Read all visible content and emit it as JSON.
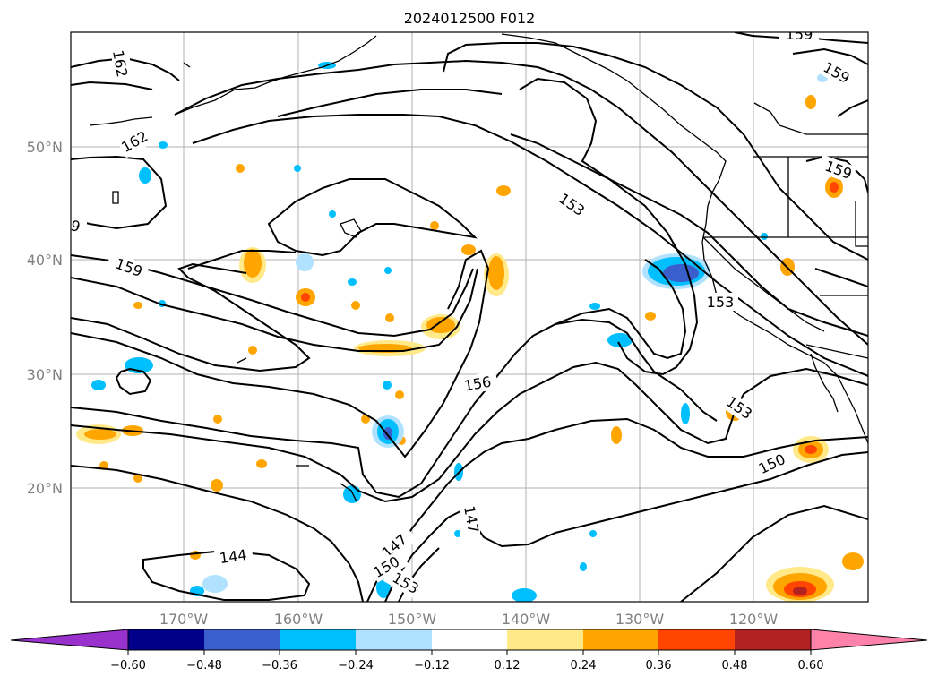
{
  "title": "2024012500 F012",
  "lat_labels": [
    "50°N",
    "40°N",
    "30°N",
    "20°N"
  ],
  "lon_labels": [
    "170°W",
    "160°W",
    "150°W",
    "140°W",
    "130°W",
    "120°W"
  ],
  "colorbar": {
    "ticks": [
      "−0.60",
      "−0.48",
      "−0.36",
      "−0.24",
      "−0.12",
      "0.12",
      "0.24",
      "0.36",
      "0.48",
      "0.60"
    ],
    "colors": [
      "#9932cc",
      "#00008b",
      "#3a5fcd",
      "#00bfff",
      "#b0e2ff",
      "#ffffff",
      "#ffe989",
      "#ffa500",
      "#ff4500",
      "#b22222",
      "#ff82ab"
    ]
  },
  "contour_labels": [
    "162",
    "159",
    "162",
    "159",
    "159",
    "153",
    "153",
    "156",
    "153",
    "150",
    "147",
    "147",
    "150",
    "153",
    "144",
    "159"
  ],
  "colors": {
    "grid": "#b0b0b0",
    "axis_text": "#808080",
    "contour": "#000000"
  }
}
